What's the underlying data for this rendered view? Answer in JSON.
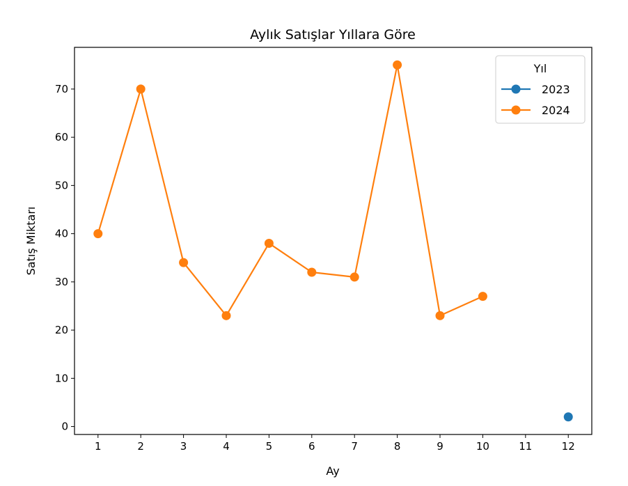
{
  "chart_data": {
    "type": "line",
    "title": "Aylık Satışlar Yıllara Göre",
    "xlabel": "Ay",
    "ylabel": "Satış Miktarı",
    "xlim": [
      0.45,
      12.55
    ],
    "ylim": [
      -1.65,
      78.65
    ],
    "xticks": [
      1,
      2,
      3,
      4,
      5,
      6,
      7,
      8,
      9,
      10,
      11,
      12
    ],
    "yticks": [
      0,
      10,
      20,
      30,
      40,
      50,
      60,
      70
    ],
    "grid": false,
    "legend": {
      "title": "Yıl",
      "placement": "top-right"
    },
    "series": [
      {
        "name": "2023",
        "color": "#1f77b4",
        "x": [
          12
        ],
        "y": [
          2
        ]
      },
      {
        "name": "2024",
        "color": "#ff7f0e",
        "x": [
          1,
          2,
          3,
          4,
          5,
          6,
          7,
          8,
          9,
          10
        ],
        "y": [
          40,
          70,
          34,
          23,
          38,
          32,
          31,
          75,
          23,
          27
        ]
      }
    ]
  }
}
